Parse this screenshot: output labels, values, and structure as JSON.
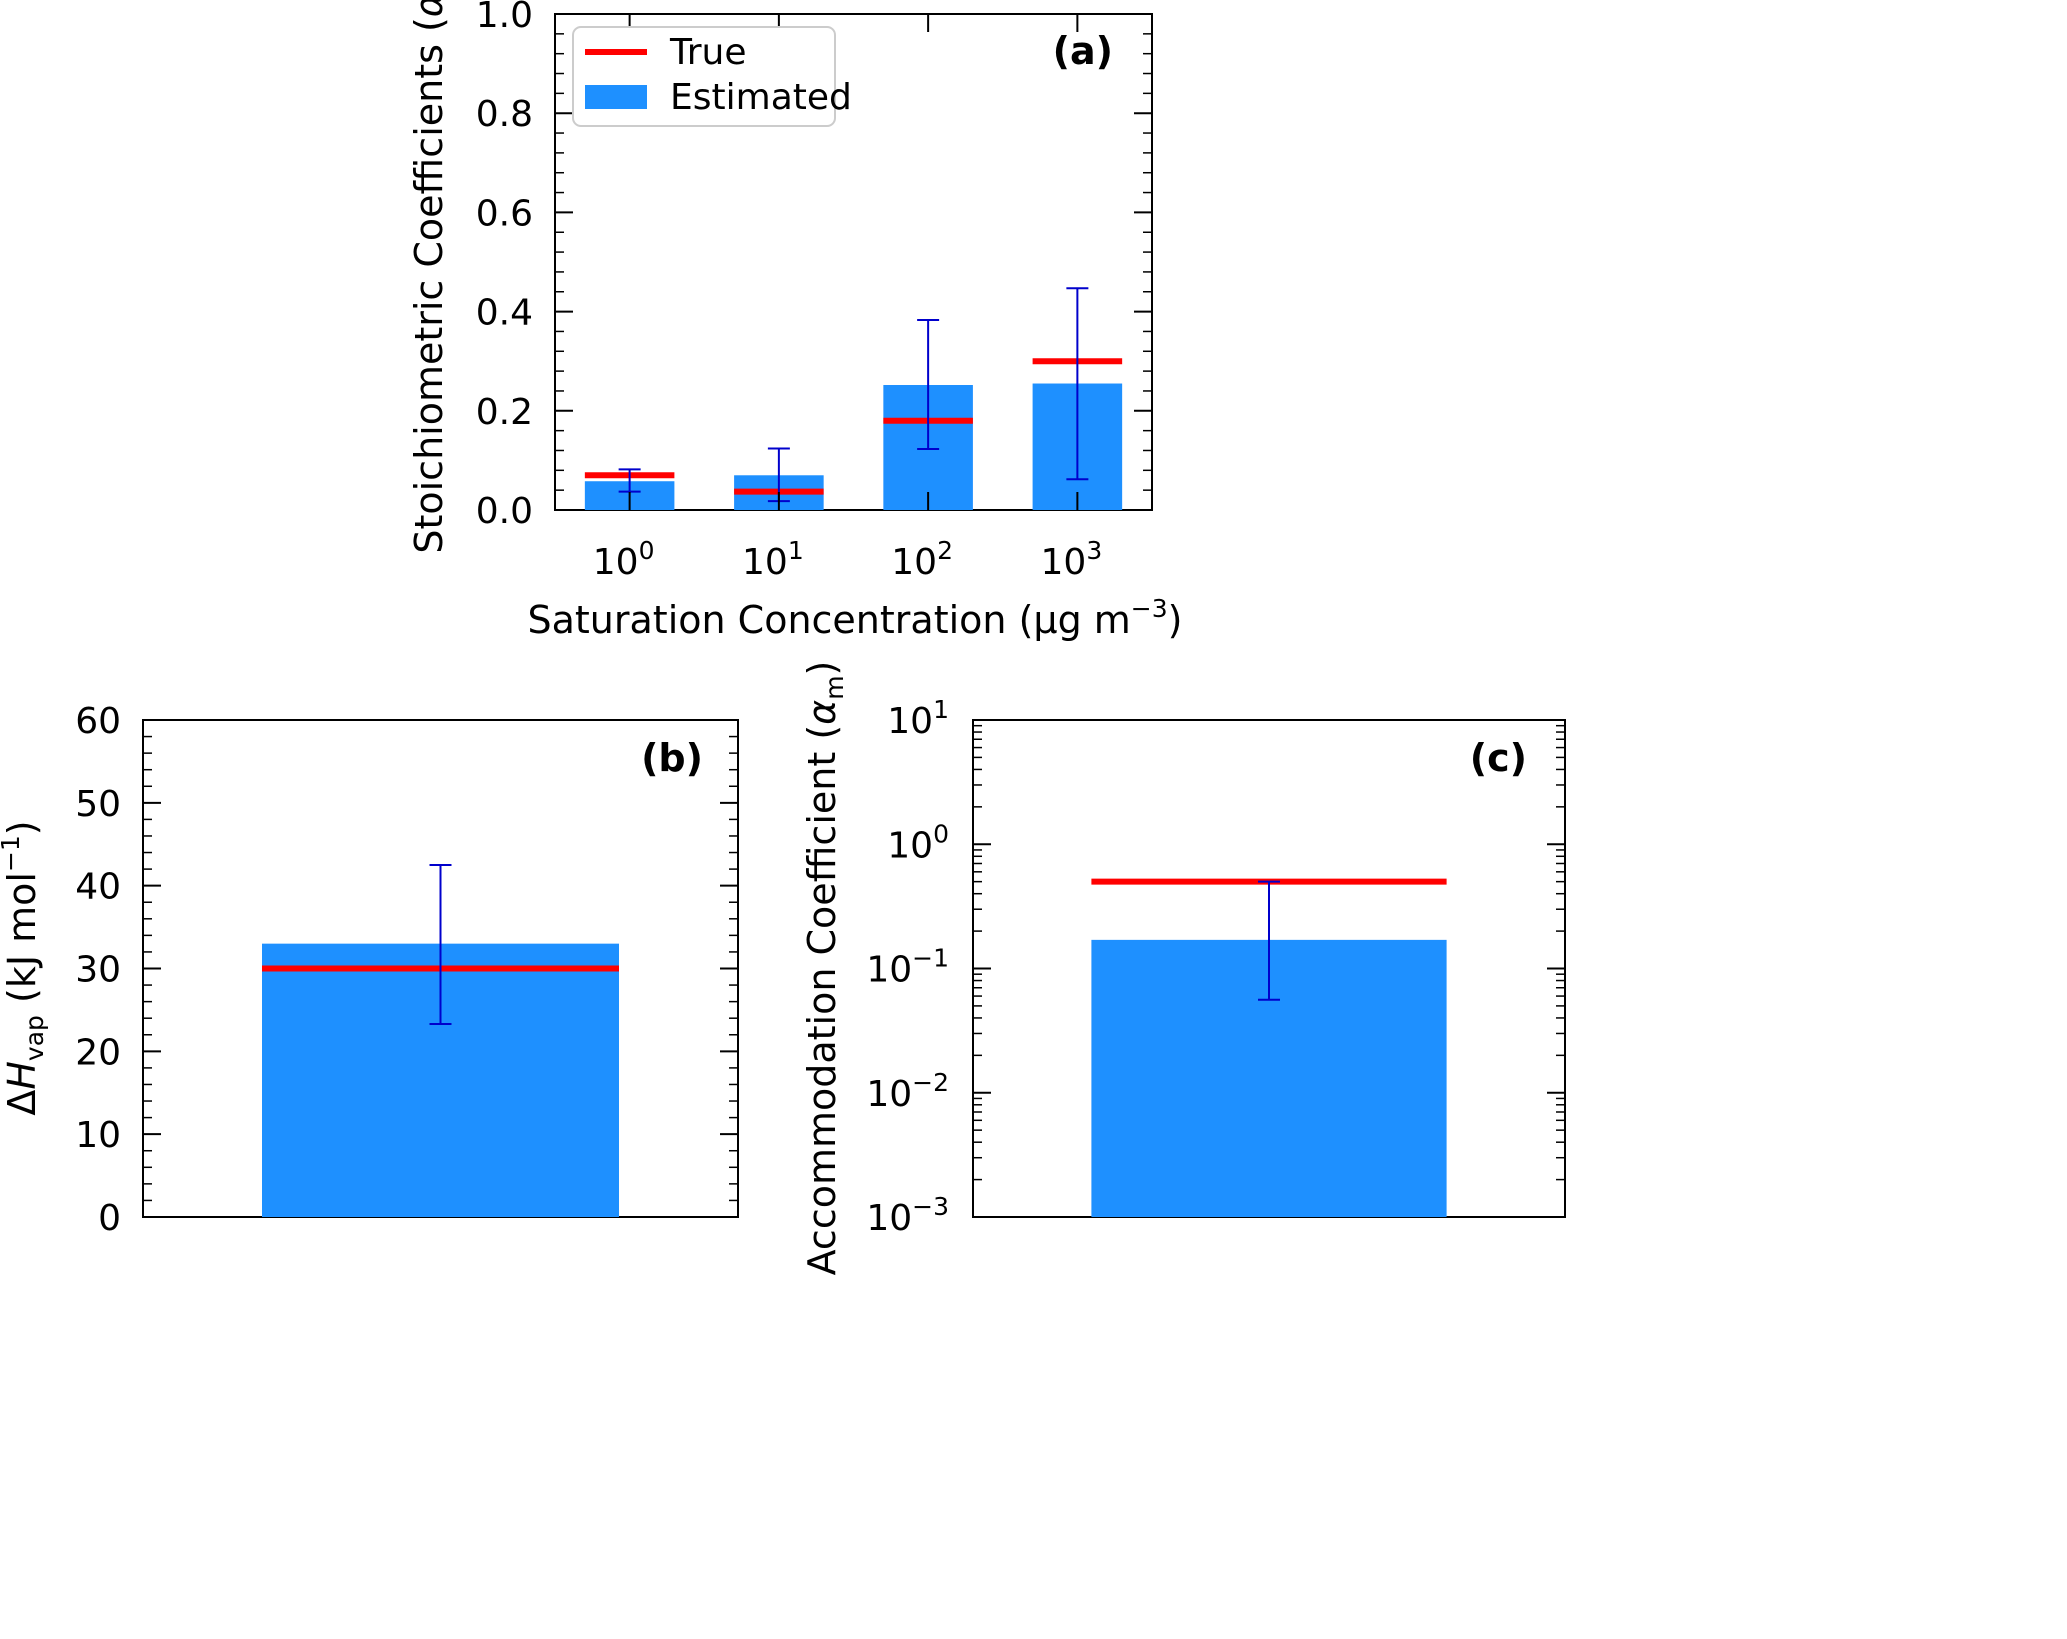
{
  "colors": {
    "bar": "#1e90ff",
    "true_line": "#ff0000",
    "error_bar": "#0000cc",
    "axes": "#000000"
  },
  "chart_data": [
    {
      "id": "a",
      "type": "bar",
      "panel_label": "(a)",
      "xlabel": "Saturation Concentration (μg m⁻³)",
      "ylabel": "Stoichiometric Coefficients (αi)",
      "categories": [
        "10^0",
        "10^1",
        "10^2",
        "10^3"
      ],
      "tick_labels": [
        {
          "base": "10",
          "exp": "0"
        },
        {
          "base": "10",
          "exp": "1"
        },
        {
          "base": "10",
          "exp": "2"
        },
        {
          "base": "10",
          "exp": "3"
        }
      ],
      "yscale": "linear",
      "ylim": [
        0.0,
        1.0
      ],
      "yticks": [
        "0.0",
        "0.2",
        "0.4",
        "0.6",
        "0.8",
        "1.0"
      ],
      "legend": {
        "position": "top-left",
        "entries": [
          "True",
          "Estimated"
        ]
      },
      "series": [
        {
          "name": "Estimated",
          "values": [
            0.058,
            0.07,
            0.252,
            0.255
          ],
          "err_low": [
            0.037,
            0.018,
            0.123,
            0.062
          ],
          "err_high": [
            0.082,
            0.124,
            0.383,
            0.447
          ]
        },
        {
          "name": "True",
          "values": [
            0.07,
            0.037,
            0.18,
            0.3
          ]
        }
      ]
    },
    {
      "id": "b",
      "type": "bar",
      "panel_label": "(b)",
      "ylabel": "ΔHvap (kJ mol⁻¹)",
      "yscale": "linear",
      "ylim": [
        0,
        60
      ],
      "yticks": [
        "0",
        "10",
        "20",
        "30",
        "40",
        "50",
        "60"
      ],
      "series": [
        {
          "name": "Estimated",
          "values": [
            33.0
          ],
          "err_low": [
            23.3
          ],
          "err_high": [
            42.5
          ]
        },
        {
          "name": "True",
          "values": [
            30.0
          ]
        }
      ]
    },
    {
      "id": "c",
      "type": "bar",
      "panel_label": "(c)",
      "ylabel": "Accommodation Coefficient (αm)",
      "yscale": "log",
      "ylim": [
        0.001,
        10
      ],
      "ytick_labels": [
        {
          "base": "10",
          "exp": "−3"
        },
        {
          "base": "10",
          "exp": "−2"
        },
        {
          "base": "10",
          "exp": "−1"
        },
        {
          "base": "10",
          "exp": "0"
        },
        {
          "base": "10",
          "exp": "1"
        }
      ],
      "series": [
        {
          "name": "Estimated",
          "values": [
            0.17
          ],
          "err_low": [
            0.056
          ],
          "err_high": [
            0.5
          ]
        },
        {
          "name": "True",
          "values": [
            0.5
          ]
        }
      ]
    }
  ]
}
